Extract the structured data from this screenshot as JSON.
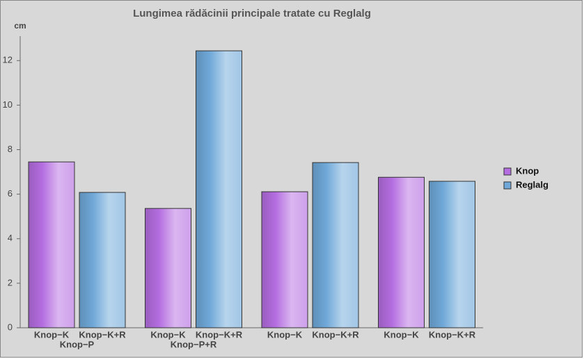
{
  "chart_data": {
    "type": "bar",
    "title": "Lungimea rădăcinii principale tratate cu Reglalg",
    "y_label": "cm",
    "categories": [
      "Knop−P",
      "Knop−P+R",
      null,
      null
    ],
    "bar_labels": [
      [
        "Knop−K",
        "Knop−K+R"
      ],
      [
        "Knop−K",
        "Knop−K+R"
      ],
      [
        "Knop−K",
        "Knop−K+R"
      ],
      [
        "Knop−K",
        "Knop−K+R"
      ]
    ],
    "series": [
      {
        "name": "Knop",
        "color": "#b46de0",
        "values": [
          7.45,
          5.36,
          6.11,
          6.76
        ]
      },
      {
        "name": "Reglalg",
        "color": "#6fa8d8",
        "values": [
          6.08,
          12.44,
          7.42,
          6.58
        ]
      }
    ],
    "ylim": [
      0,
      13.1
    ],
    "yticks": [
      0,
      2,
      4,
      6,
      8,
      10,
      12
    ],
    "legend": "right"
  }
}
